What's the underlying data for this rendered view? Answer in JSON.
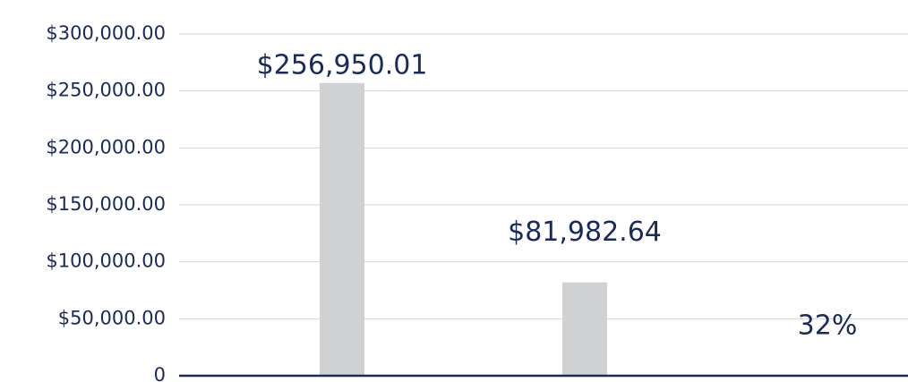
{
  "chart_data": {
    "type": "bar",
    "categories": [
      null,
      null,
      null
    ],
    "values": [
      256950.01,
      81982.64,
      32
    ],
    "value_labels": [
      "$256,950.01",
      "$81,982.64",
      "32%"
    ],
    "color": "#d0d1d3",
    "ylim": [
      0,
      300000
    ],
    "yticks": [
      0,
      {
        "value": 50000,
        "label": "$50,000.00"
      },
      {
        "value": 100000,
        "label": "$100,000.00"
      },
      {
        "value": 150000,
        "label": "$150,000.00"
      },
      {
        "value": 200000,
        "label": "$200,000.00"
      },
      {
        "value": 250000,
        "label": "$250,000.00"
      },
      {
        "value": 300000,
        "label": "$300,000.00"
      }
    ],
    "grid": true
  }
}
